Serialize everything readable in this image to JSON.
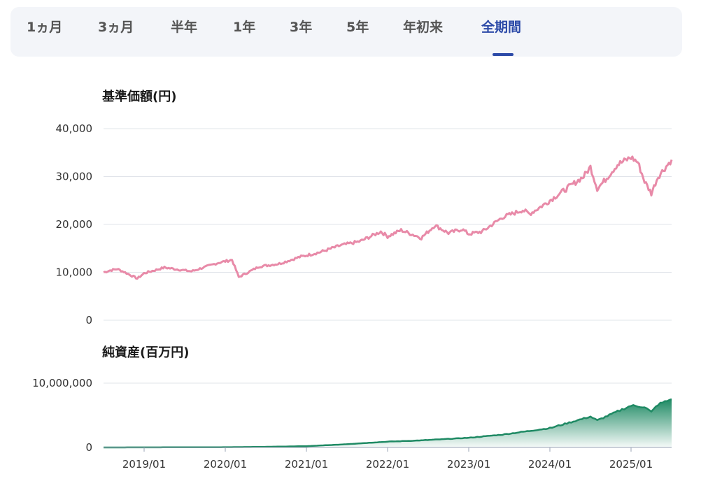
{
  "tabs": [
    {
      "label": "1ヵ月",
      "active": false
    },
    {
      "label": "3ヵ月",
      "active": false
    },
    {
      "label": "半年",
      "active": false
    },
    {
      "label": "1年",
      "active": false
    },
    {
      "label": "3年",
      "active": false
    },
    {
      "label": "5年",
      "active": false
    },
    {
      "label": "年初来",
      "active": false
    },
    {
      "label": "全期間",
      "active": true
    }
  ],
  "colors": {
    "accent": "#2c4aa8",
    "price_line": "#e88aa8",
    "assets": "#1f8a64"
  },
  "chart_data": [
    {
      "type": "line",
      "title": "基準価額(円)",
      "ylim": [
        0,
        40000
      ],
      "yticks": [
        0,
        10000,
        20000,
        30000,
        40000
      ],
      "ytick_labels": [
        "0",
        "10,000",
        "20,000",
        "30,000",
        "40,000"
      ],
      "x_range": [
        "2018-07",
        "2025-07"
      ],
      "grid": true,
      "series": [
        {
          "points": [
            [
              "2018-07",
              10000
            ],
            [
              "2018-08",
              10400
            ],
            [
              "2018-09",
              10700
            ],
            [
              "2018-10",
              10100
            ],
            [
              "2018-12",
              8700
            ],
            [
              "2019-01",
              9800
            ],
            [
              "2019-04",
              11000
            ],
            [
              "2019-08",
              10200
            ],
            [
              "2019-12",
              12000
            ],
            [
              "2020-02",
              12600
            ],
            [
              "2020-03",
              9000
            ],
            [
              "2020-06",
              11200
            ],
            [
              "2020-09",
              11800
            ],
            [
              "2020-12",
              13200
            ],
            [
              "2021-03",
              14200
            ],
            [
              "2021-06",
              15600
            ],
            [
              "2021-09",
              16500
            ],
            [
              "2021-12",
              18500
            ],
            [
              "2022-01",
              17500
            ],
            [
              "2022-03",
              18800
            ],
            [
              "2022-06",
              17200
            ],
            [
              "2022-08",
              19800
            ],
            [
              "2022-10",
              18200
            ],
            [
              "2022-12",
              19000
            ],
            [
              "2023-01",
              18000
            ],
            [
              "2023-03",
              18500
            ],
            [
              "2023-06",
              21500
            ],
            [
              "2023-09",
              23000
            ],
            [
              "2023-10",
              22200
            ],
            [
              "2023-12",
              24000
            ],
            [
              "2024-03",
              27000
            ],
            [
              "2024-06",
              30000
            ],
            [
              "2024-07",
              32000
            ],
            [
              "2024-08",
              27500
            ],
            [
              "2024-09",
              29000
            ],
            [
              "2024-11",
              32500
            ],
            [
              "2025-01",
              34000
            ],
            [
              "2025-02",
              33000
            ],
            [
              "2025-03",
              29000
            ],
            [
              "2025-04",
              26500
            ],
            [
              "2025-05",
              30000
            ],
            [
              "2025-07",
              33500
            ]
          ]
        }
      ]
    },
    {
      "type": "area",
      "title": "純資産(百万円)",
      "ylim": [
        0,
        10000000
      ],
      "yticks": [
        0,
        10000000
      ],
      "ytick_labels": [
        "0",
        "10,000,000"
      ],
      "x_range": [
        "2018-07",
        "2025-07"
      ],
      "xtick_labels": [
        "2019/01",
        "2020/01",
        "2021/01",
        "2022/01",
        "2023/01",
        "2024/01",
        "2025/01"
      ],
      "xtick_dates": [
        "2019-01",
        "2020-01",
        "2021-01",
        "2022-01",
        "2023-01",
        "2024-01",
        "2025-01"
      ],
      "grid": true,
      "series": [
        {
          "points": [
            [
              "2018-07",
              0
            ],
            [
              "2019-01",
              10000
            ],
            [
              "2020-01",
              40000
            ],
            [
              "2020-06",
              80000
            ],
            [
              "2021-01",
              200000
            ],
            [
              "2021-06",
              450000
            ],
            [
              "2022-01",
              900000
            ],
            [
              "2022-06",
              1100000
            ],
            [
              "2023-01",
              1500000
            ],
            [
              "2023-06",
              2000000
            ],
            [
              "2024-01",
              3000000
            ],
            [
              "2024-07",
              4800000
            ],
            [
              "2024-08",
              4200000
            ],
            [
              "2024-11",
              5600000
            ],
            [
              "2025-01",
              6500000
            ],
            [
              "2025-03",
              6300000
            ],
            [
              "2025-04",
              5500000
            ],
            [
              "2025-05",
              6700000
            ],
            [
              "2025-07",
              7500000
            ]
          ]
        }
      ]
    }
  ]
}
